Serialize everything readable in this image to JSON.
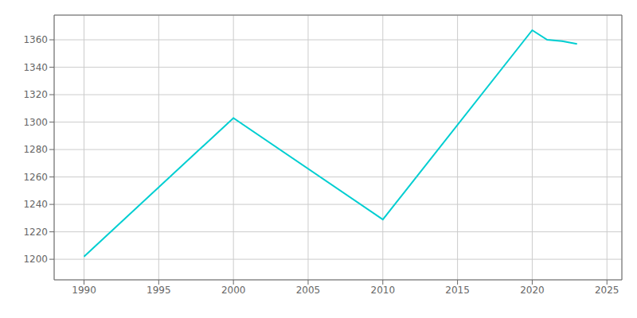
{
  "chart_data": {
    "type": "line",
    "x": [
      1990,
      2000,
      2010,
      2020,
      2021,
      2022,
      2023
    ],
    "values": [
      1202,
      1303,
      1229,
      1367,
      1360,
      1359,
      1357
    ],
    "color": "#00CED1",
    "xlim": [
      1988,
      2026
    ],
    "ylim": [
      1185,
      1378
    ],
    "xticks": [
      1990,
      1995,
      2000,
      2005,
      2010,
      2015,
      2020,
      2025
    ],
    "yticks": [
      1200,
      1220,
      1240,
      1260,
      1280,
      1300,
      1320,
      1340,
      1360
    ],
    "grid": true
  }
}
